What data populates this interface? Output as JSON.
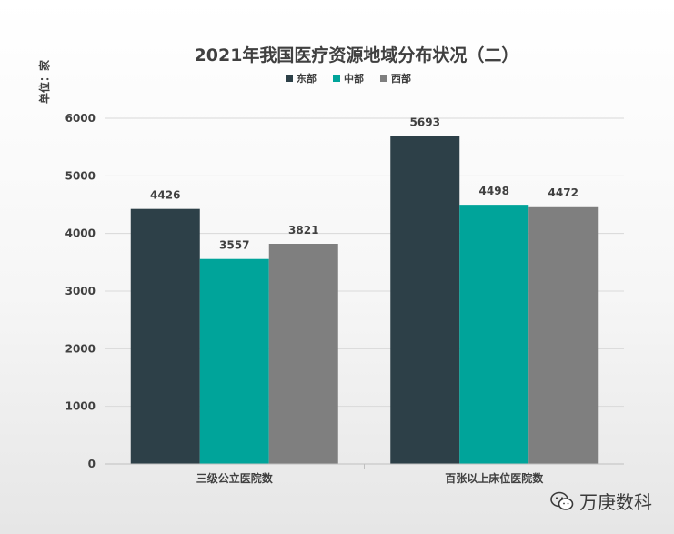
{
  "chart_data": {
    "type": "bar",
    "title": "2021年我国医疗资源地域分布状况（二）",
    "ylabel": "单位：家",
    "categories": [
      "三级公立医院数",
      "百张以上床位医院数"
    ],
    "series": [
      {
        "name": "东部",
        "color": "#2d4048",
        "values": [
          4426,
          5693
        ]
      },
      {
        "name": "中部",
        "color": "#00a49a",
        "values": [
          3557,
          4498
        ]
      },
      {
        "name": "西部",
        "color": "#7f7f7f",
        "values": [
          3821,
          4472
        ]
      }
    ],
    "ylim": [
      0,
      6000
    ],
    "yticks": [
      0,
      1000,
      2000,
      3000,
      4000,
      5000,
      6000
    ],
    "grid": true,
    "legend_position": "top-center"
  },
  "watermark": {
    "text": "万庚数科",
    "icon": "wechat-icon"
  }
}
